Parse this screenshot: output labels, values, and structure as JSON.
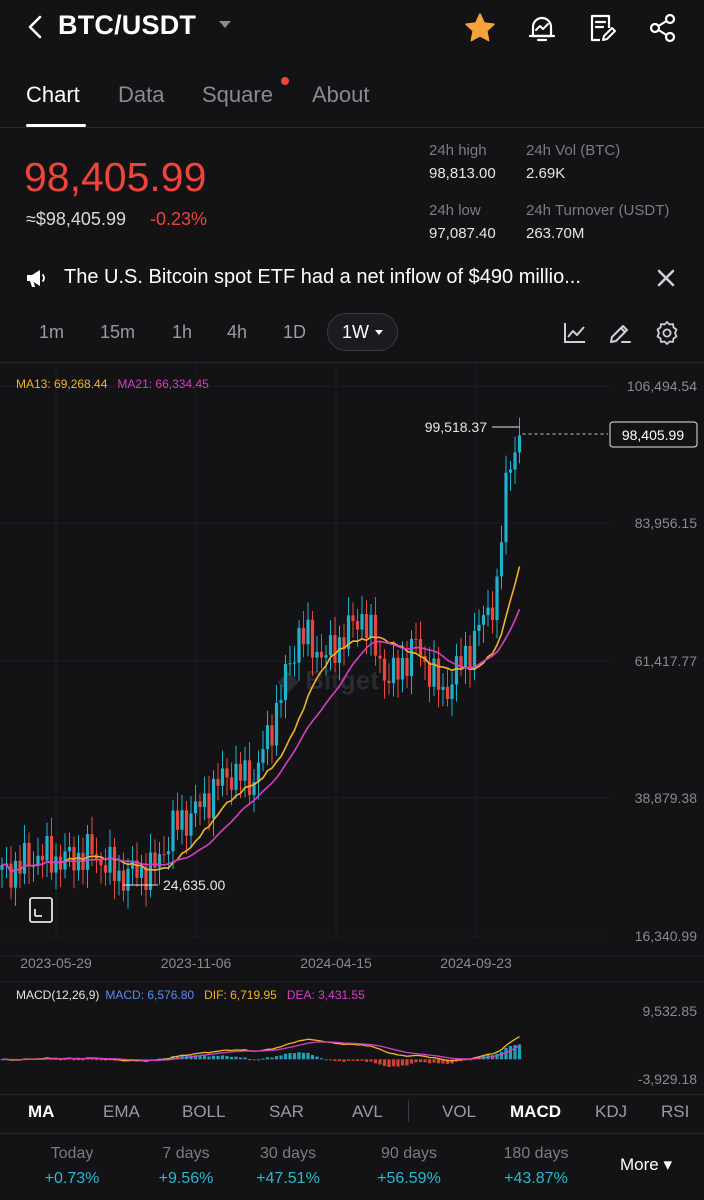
{
  "header": {
    "pair": "BTC/USDT",
    "icons": [
      "back-icon",
      "caret-down-icon",
      "star-icon",
      "price-alert-icon",
      "notes-icon",
      "share-icon"
    ],
    "star_color": "#f7a33b"
  },
  "tabs": [
    {
      "label": "Chart",
      "active": true
    },
    {
      "label": "Data",
      "active": false
    },
    {
      "label": "Square",
      "active": false,
      "dot": true
    },
    {
      "label": "About",
      "active": false
    }
  ],
  "price": {
    "last": "98,405.99",
    "usd": "≈$98,405.99",
    "change": "-0.23%",
    "color_down": "#f0443a"
  },
  "stats": {
    "high_label": "24h high",
    "high_value": "98,813.00",
    "low_label": "24h low",
    "low_value": "97,087.40",
    "vol_label": "24h Vol (BTC)",
    "vol_value": "2.69K",
    "turnover_label": "24h Turnover (USDT)",
    "turnover_value": "263.70M"
  },
  "news": {
    "text": "The U.S. Bitcoin spot ETF had a net inflow of $490 millio..."
  },
  "timeframes": [
    "1m",
    "15m",
    "1h",
    "4h",
    "1D"
  ],
  "timeframe_selected": "1W",
  "chart": {
    "ma13_label": "MA13: 69,268.44",
    "ma21_label": "MA21: 66,334.45",
    "price_axis": [
      "106,494.54",
      "83,956.15",
      "61,417.77",
      "38,879.38",
      "16,340.99"
    ],
    "date_axis": [
      "2023-05-29",
      "2023-11-06",
      "2024-04-15",
      "2024-09-23"
    ],
    "high_marker": "99,518.37",
    "low_marker": "24,635.00",
    "current_price_tag": "98,405.99",
    "up_color": "#1fb0cc",
    "down_color": "#e8473c",
    "ma13_color": "#f0b429",
    "ma21_color": "#d63fc3"
  },
  "macd": {
    "title": "MACD(12,26,9)",
    "macd_label": "MACD: 6,576.80",
    "dif_label": "DIF: 6,719.95",
    "dea_label": "DEA: 3,431.55",
    "axis": [
      "9,532.85",
      "-3,929.18"
    ],
    "macd_color": "#5a8cf0",
    "dif_color": "#f0b429",
    "dea_color": "#d63fc3"
  },
  "indicators_main": [
    "MA",
    "EMA",
    "BOLL",
    "SAR",
    "AVL"
  ],
  "indicators_sub": [
    "VOL",
    "MACD",
    "KDJ",
    "RSI"
  ],
  "indicator_main_active": "MA",
  "indicator_sub_active": "MACD",
  "performance": [
    {
      "label": "Today",
      "value": "+0.73%"
    },
    {
      "label": "7 days",
      "value": "+9.56%"
    },
    {
      "label": "30 days",
      "value": "+47.51%"
    },
    {
      "label": "90 days",
      "value": "+56.59%"
    },
    {
      "label": "180 days",
      "value": "+43.87%"
    }
  ],
  "more_label": "More ▾"
}
